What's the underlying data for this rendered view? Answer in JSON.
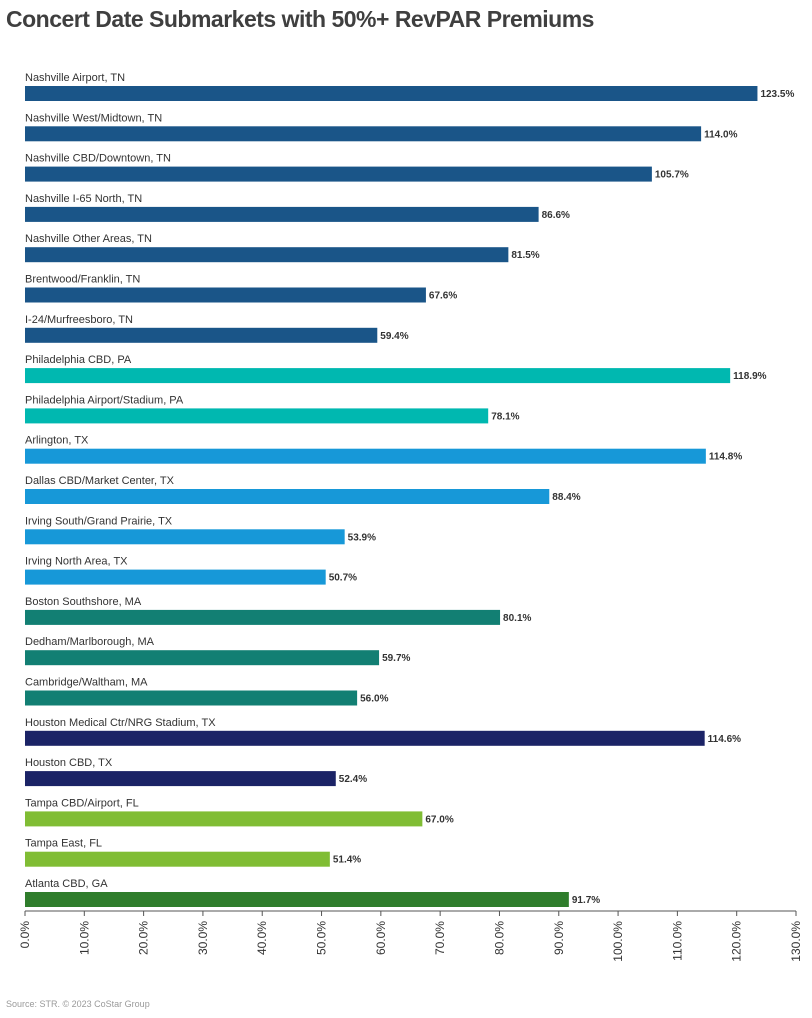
{
  "title": "Concert Date Submarkets with 50%+ RevPAR Premiums",
  "source": "Source: STR. © 2023 CoStar Group",
  "chart_data": {
    "type": "bar",
    "orientation": "horizontal",
    "title": "Concert Date Submarkets with 50%+ RevPAR Premiums",
    "xlabel": "",
    "ylabel": "",
    "xlim": [
      0,
      130
    ],
    "grid": false,
    "legend": "none",
    "x_ticks": [
      "0.0%",
      "10.0%",
      "20.0%",
      "30.0%",
      "40.0%",
      "50.0%",
      "60.0%",
      "70.0%",
      "80.0%",
      "90.0%",
      "100.0%",
      "110.0%",
      "120.0%",
      "130.0%"
    ],
    "categories": [
      "Nashville Airport, TN",
      "Nashville West/Midtown, TN",
      "Nashville CBD/Downtown, TN",
      "Nashville I-65 North, TN",
      "Nashville Other Areas, TN",
      "Brentwood/Franklin, TN",
      "I-24/Murfreesboro, TN",
      "Philadelphia CBD, PA",
      "Philadelphia Airport/Stadium, PA",
      "Arlington, TX",
      "Dallas CBD/Market Center, TX",
      "Irving South/Grand Prairie, TX",
      "Irving North Area, TX",
      "Boston Southshore, MA",
      "Dedham/Marlborough, MA",
      "Cambridge/Waltham, MA",
      "Houston Medical Ctr/NRG Stadium, TX",
      "Houston CBD, TX",
      "Tampa CBD/Airport, FL",
      "Tampa East, FL",
      "Atlanta CBD, GA"
    ],
    "values": [
      123.5,
      114.0,
      105.7,
      86.6,
      81.5,
      67.6,
      59.4,
      118.9,
      78.1,
      114.8,
      88.4,
      53.9,
      50.7,
      80.1,
      59.7,
      56.0,
      114.6,
      52.4,
      67.0,
      51.4,
      91.7
    ],
    "value_labels": [
      "123.5%",
      "114.0%",
      "105.7%",
      "86.6%",
      "81.5%",
      "67.6%",
      "59.4%",
      "118.9%",
      "78.1%",
      "114.8%",
      "88.4%",
      "53.9%",
      "50.7%",
      "80.1%",
      "59.7%",
      "56.0%",
      "114.6%",
      "52.4%",
      "67.0%",
      "51.4%",
      "91.7%"
    ],
    "colors": [
      "#1a5588",
      "#1a5588",
      "#1a5588",
      "#1a5588",
      "#1a5588",
      "#1a5588",
      "#1a5588",
      "#00b8b0",
      "#00b8b0",
      "#1798d8",
      "#1798d8",
      "#1798d8",
      "#1798d8",
      "#127f73",
      "#127f73",
      "#127f73",
      "#1b2366",
      "#1b2366",
      "#80bd34",
      "#80bd34",
      "#2f7d2c"
    ]
  }
}
